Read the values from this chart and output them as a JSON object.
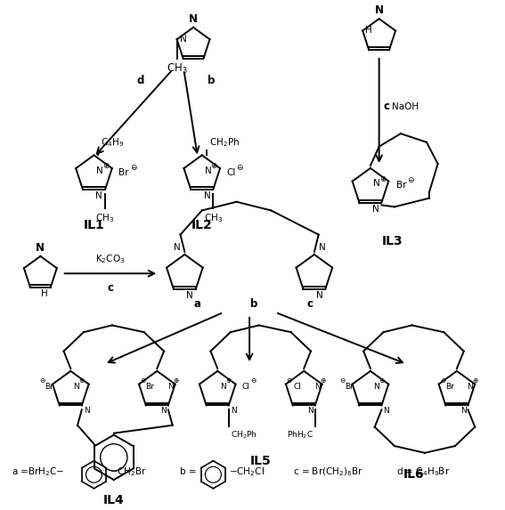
{
  "figsize": [
    5.67,
    5.73
  ],
  "dpi": 100,
  "bg_color": "#ffffff",
  "xlim": [
    0,
    567
  ],
  "ylim": [
    0,
    573
  ]
}
